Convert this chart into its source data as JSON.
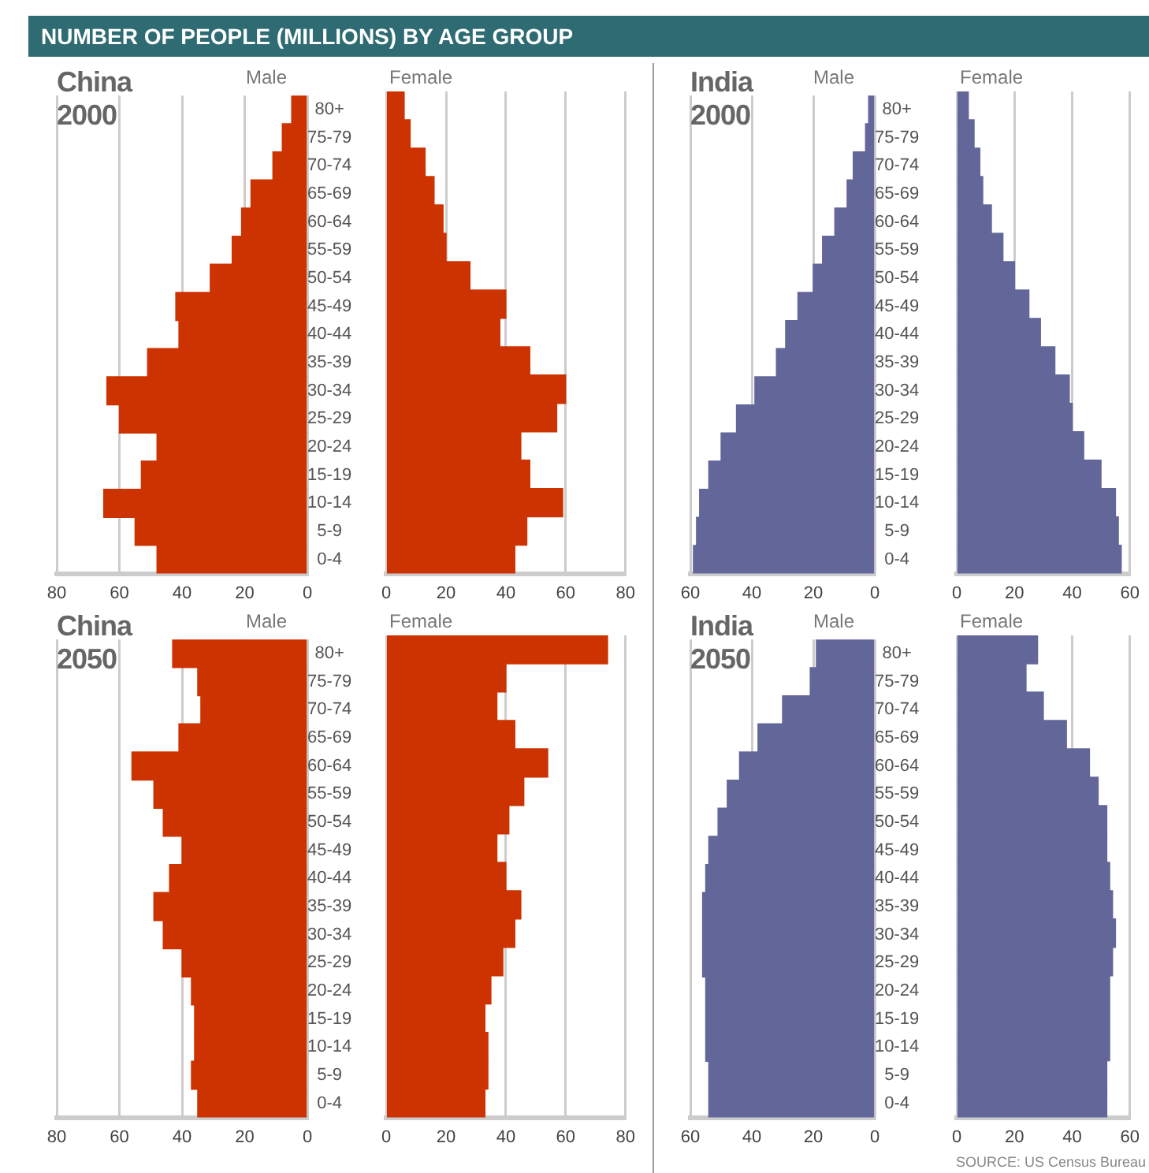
{
  "chart_data": [
    {
      "type": "bar",
      "orientation": "horizontal",
      "title": "China 2000",
      "annotations": [
        "NUMBER OF PEOPLE (MILLIONS) BY AGE GROUP"
      ],
      "categories": [
        "80+",
        "75-79",
        "70-74",
        "65-69",
        "60-64",
        "55-59",
        "50-54",
        "45-49",
        "40-44",
        "35-39",
        "30-34",
        "25-29",
        "20-24",
        "15-19",
        "10-14",
        "5-9",
        "0-4"
      ],
      "series": [
        {
          "name": "Male",
          "color": "#cc3300",
          "values": [
            5,
            8,
            11,
            18,
            21,
            24,
            31,
            42,
            41,
            51,
            64,
            60,
            48,
            53,
            65,
            55,
            48
          ]
        }
      ],
      "xlim": [
        80,
        0
      ],
      "xticks": [
        80,
        60,
        40,
        20,
        0
      ],
      "grid": "x",
      "legend": false
    },
    {
      "type": "bar",
      "orientation": "horizontal",
      "tick_labels": "x",
      "series": [
        {
          "name": "Female",
          "color": "#cc3300",
          "values": [
            6,
            8,
            13,
            16,
            19,
            20,
            28,
            40,
            38,
            48,
            60,
            57,
            45,
            48,
            59,
            47,
            43
          ]
        }
      ],
      "xlim": [
        0,
        80
      ],
      "xticks": [
        0,
        20,
        40,
        60,
        80
      ],
      "grid": "x",
      "legend": false
    },
    {
      "type": "bar",
      "orientation": "horizontal",
      "title": "India 2000",
      "categories": [
        "80+",
        "75-79",
        "70-74",
        "65-69",
        "60-64",
        "55-59",
        "50-54",
        "45-49",
        "40-44",
        "35-39",
        "30-34",
        "25-29",
        "20-24",
        "15-19",
        "10-14",
        "5-9",
        "0-4"
      ],
      "series": [
        {
          "name": "Male",
          "color": "#636699",
          "values": [
            2,
            3,
            7,
            9,
            13,
            17,
            20,
            25,
            29,
            32,
            39,
            45,
            50,
            54,
            57,
            58,
            59
          ]
        }
      ],
      "xlim": [
        60,
        0
      ],
      "xticks": [
        60,
        40,
        20,
        0
      ],
      "grid": "x",
      "legend": false
    },
    {
      "type": "bar",
      "orientation": "horizontal",
      "tick_labels": "x",
      "series": [
        {
          "name": "Female",
          "color": "#636699",
          "values": [
            4,
            6,
            8,
            9,
            12,
            16,
            20,
            25,
            29,
            34,
            39,
            40,
            44,
            50,
            55,
            56,
            57
          ]
        }
      ],
      "xlim": [
        0,
        60
      ],
      "xticks": [
        0,
        20,
        40,
        60
      ],
      "grid": "x",
      "legend": false
    },
    {
      "type": "bar",
      "orientation": "horizontal",
      "title": "China 2050",
      "categories": [
        "80+",
        "75-79",
        "70-74",
        "65-69",
        "60-64",
        "55-59",
        "50-54",
        "45-49",
        "40-44",
        "35-39",
        "30-34",
        "25-29",
        "20-24",
        "15-19",
        "10-14",
        "5-9",
        "0-4"
      ],
      "series": [
        {
          "name": "Male",
          "color": "#cc3300",
          "values": [
            43,
            35,
            34,
            41,
            56,
            49,
            46,
            40,
            44,
            49,
            46,
            40,
            37,
            36,
            36,
            37,
            35
          ]
        }
      ],
      "xlim": [
        80,
        0
      ],
      "xticks": [
        80,
        60,
        40,
        20,
        0
      ],
      "grid": "x",
      "legend": false
    },
    {
      "type": "bar",
      "orientation": "horizontal",
      "tick_labels": "x",
      "series": [
        {
          "name": "Female",
          "color": "#cc3300",
          "values": [
            74,
            40,
            37,
            43,
            54,
            46,
            41,
            37,
            40,
            45,
            43,
            39,
            35,
            33,
            34,
            34,
            33
          ]
        }
      ],
      "xlim": [
        0,
        80
      ],
      "xticks": [
        0,
        20,
        40,
        60,
        80
      ],
      "grid": "x",
      "legend": false
    },
    {
      "type": "bar",
      "orientation": "horizontal",
      "title": "India 2050",
      "categories": [
        "80+",
        "75-79",
        "70-74",
        "65-69",
        "60-64",
        "55-59",
        "50-54",
        "45-49",
        "40-44",
        "35-39",
        "30-34",
        "25-29",
        "20-24",
        "15-19",
        "10-14",
        "5-9",
        "0-4"
      ],
      "series": [
        {
          "name": "Male",
          "color": "#636699",
          "values": [
            19,
            21,
            30,
            38,
            44,
            48,
            51,
            54,
            55,
            56,
            56,
            56,
            55,
            55,
            55,
            54,
            54
          ]
        }
      ],
      "xlim": [
        60,
        0
      ],
      "xticks": [
        60,
        40,
        20,
        0
      ],
      "grid": "x",
      "legend": false
    },
    {
      "type": "bar",
      "orientation": "horizontal",
      "tick_labels": "x",
      "annotations": [
        "SOURCE: US Census Bureau"
      ],
      "series": [
        {
          "name": "Female",
          "color": "#636699",
          "values": [
            28,
            24,
            30,
            38,
            46,
            49,
            52,
            52,
            53,
            54,
            55,
            54,
            53,
            53,
            53,
            52,
            52
          ]
        }
      ],
      "xlim": [
        0,
        60
      ],
      "xticks": [
        0,
        20,
        40,
        60
      ],
      "grid": "x",
      "legend": false
    }
  ]
}
